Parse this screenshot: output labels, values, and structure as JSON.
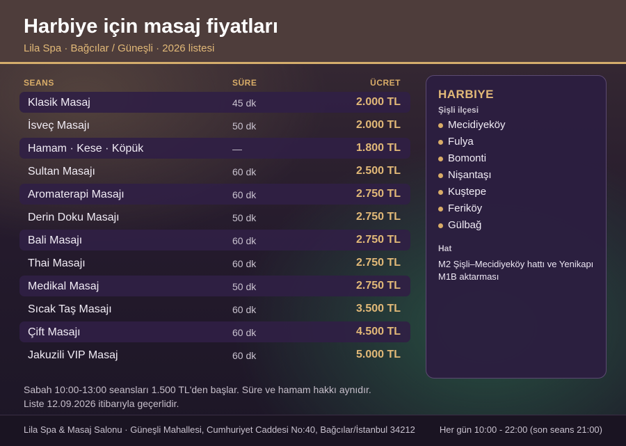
{
  "header": {
    "title": "Harbiye için masaj fiyatları",
    "subtitle": "Lila Spa · Bağcılar / Güneşli · 2026 listesi"
  },
  "table": {
    "columns": {
      "service": "SEANS",
      "duration": "SÜRE",
      "price": "ÜCRET"
    },
    "rows": [
      {
        "name": "Klasik Masaj",
        "duration": "45 dk",
        "price": "2.000 TL"
      },
      {
        "name": "İsveç Masajı",
        "duration": "50 dk",
        "price": "2.000 TL"
      },
      {
        "name": "Hamam · Kese · Köpük",
        "duration": "—",
        "price": "1.800 TL"
      },
      {
        "name": "Sultan Masajı",
        "duration": "60 dk",
        "price": "2.500 TL"
      },
      {
        "name": "Aromaterapi Masajı",
        "duration": "60 dk",
        "price": "2.750 TL"
      },
      {
        "name": "Derin Doku Masajı",
        "duration": "50 dk",
        "price": "2.750 TL"
      },
      {
        "name": "Bali Masajı",
        "duration": "60 dk",
        "price": "2.750 TL"
      },
      {
        "name": "Thai Masajı",
        "duration": "60 dk",
        "price": "2.750 TL"
      },
      {
        "name": "Medikal Masaj",
        "duration": "50 dk",
        "price": "2.750 TL"
      },
      {
        "name": "Sıcak Taş Masajı",
        "duration": "60 dk",
        "price": "3.500 TL"
      },
      {
        "name": "Çift Masajı",
        "duration": "60 dk",
        "price": "4.500 TL"
      },
      {
        "name": "Jakuzili VIP Masaj",
        "duration": "60 dk",
        "price": "5.000 TL"
      }
    ]
  },
  "notes": {
    "line1": "Sabah 10:00-13:00 seansları 1.500 TL'den başlar. Süre ve hamam hakkı aynıdır.",
    "line2": "Liste 12.09.2026 itibarıyla geçerlidir."
  },
  "panel": {
    "title": "HARBIYE",
    "district": "Şişli ilçesi",
    "neighborhoods": [
      "Mecidiyeköy",
      "Fulya",
      "Bomonti",
      "Nişantaşı",
      "Kuştepe",
      "Feriköy",
      "Gülbağ"
    ],
    "transit_label": "Hat",
    "transit_text": "M2 Şişli–Mecidiyeköy hattı ve Yenikapı M1B aktarması"
  },
  "footer": {
    "address": "Lila Spa & Masaj Salonu · Güneşli Mahallesi, Cumhuriyet Caddesi No:40, Bağcılar/İstanbul 34212",
    "hours": "Her gün 10:00 - 22:00 (son seans 21:00)"
  },
  "colors": {
    "accent": "#e2b978",
    "header_bg": "#4e3d3b",
    "panel_bg": "#2c1e40",
    "row_shade": "#302044"
  }
}
